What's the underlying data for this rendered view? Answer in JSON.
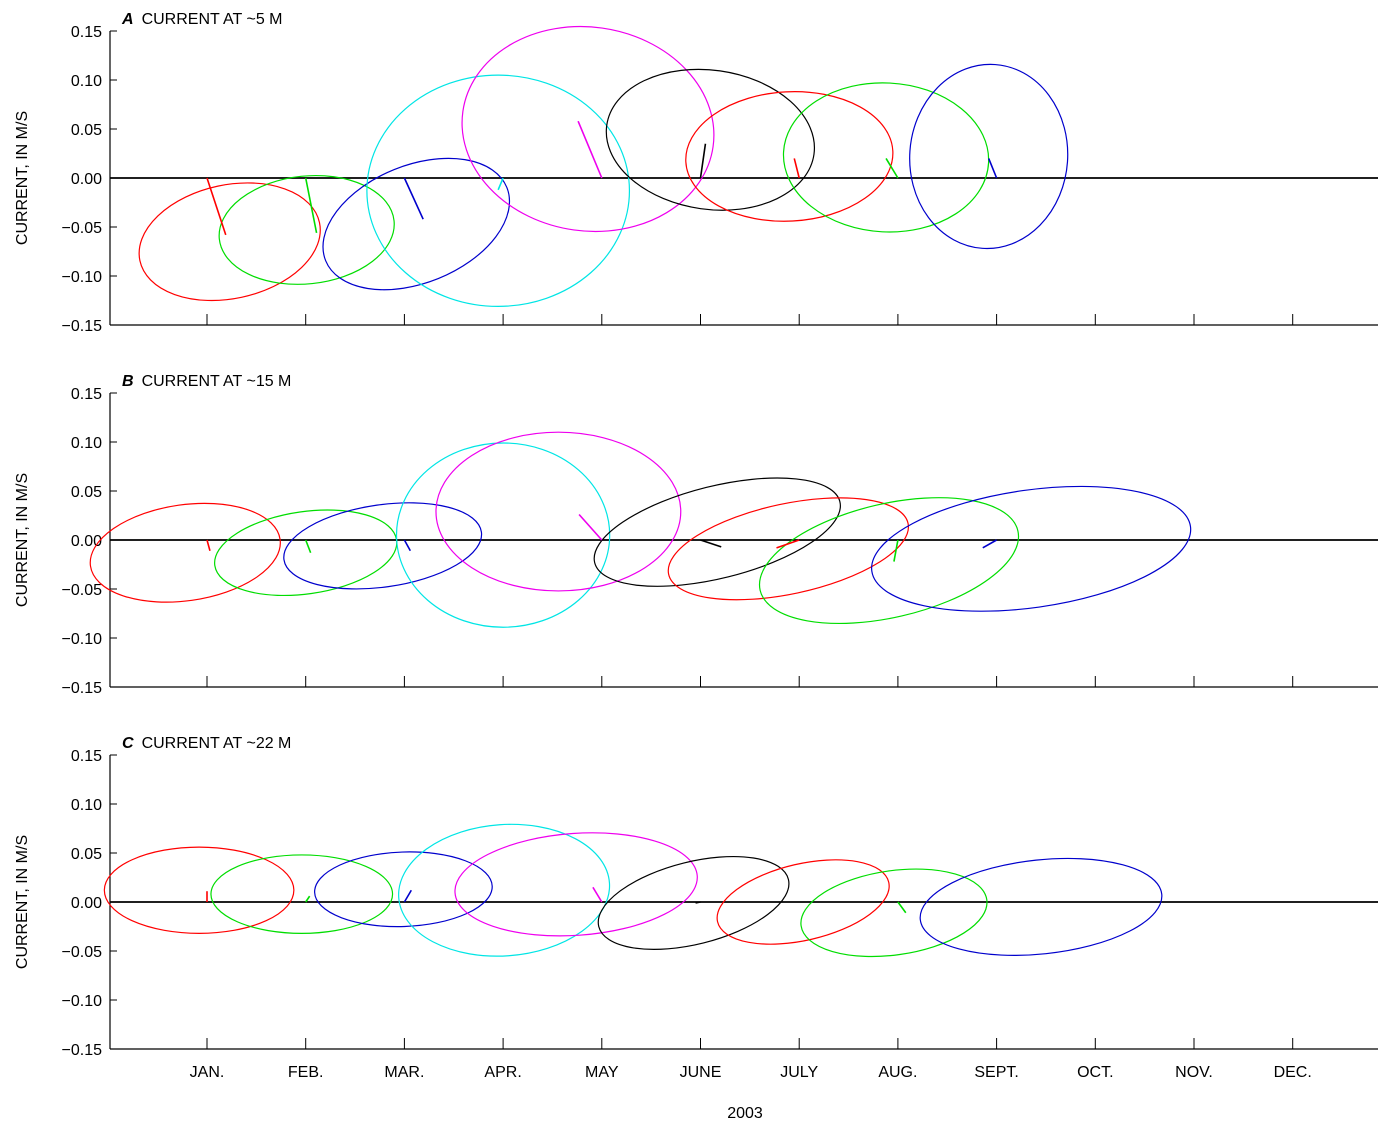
{
  "figure": {
    "x_axis_label": "2003",
    "y_axis_label": "CURRENT, IN M/S"
  },
  "chart_data": {
    "type": "scatter",
    "subtype": "monthly mean current vectors with variance ellipses",
    "months": [
      "JAN.",
      "FEB.",
      "MAR.",
      "APR.",
      "MAY",
      "JUNE",
      "JULY",
      "AUG.",
      "SEPT.",
      "OCT.",
      "NOV.",
      "DEC."
    ],
    "ylim": [
      -0.15,
      0.15
    ],
    "yticks": [
      "0.15",
      "0.10",
      "0.05",
      "0.00",
      "−0.05",
      "−0.10",
      "−0.15"
    ],
    "ytick_values": [
      0.15,
      0.1,
      0.05,
      0.0,
      -0.05,
      -0.1,
      -0.15
    ],
    "month_colors": [
      "#ff0000",
      "#00dd00",
      "#0000cc",
      "#00e5e5",
      "#ee00ee",
      "#000000",
      "#ff0000",
      "#00dd00",
      "#0000cc"
    ],
    "panels": [
      {
        "letter": "A",
        "title": "CURRENT AT ~5 M",
        "vectors": [
          {
            "month": 0,
            "u": 0.19,
            "v": -0.058
          },
          {
            "month": 1,
            "u": 0.11,
            "v": -0.056
          },
          {
            "month": 2,
            "u": 0.19,
            "v": -0.042
          },
          {
            "month": 3,
            "u": -0.05,
            "v": -0.012
          },
          {
            "month": 4,
            "u": -0.24,
            "v": 0.058
          },
          {
            "month": 5,
            "u": 0.05,
            "v": 0.035
          },
          {
            "month": 6,
            "u": -0.05,
            "v": 0.02
          },
          {
            "month": 7,
            "u": -0.12,
            "v": 0.02
          },
          {
            "month": 8,
            "u": -0.08,
            "v": 0.02
          }
        ],
        "ellipses": [
          {
            "month": 0,
            "du": 0.23,
            "dv": -0.065,
            "a": 0.93,
            "b": 0.058,
            "angle_deg": -12
          },
          {
            "month": 1,
            "du": 0.01,
            "dv": -0.053,
            "a": 0.89,
            "b": 0.055,
            "angle_deg": -6
          },
          {
            "month": 2,
            "du": 0.12,
            "dv": -0.047,
            "a": 0.99,
            "b": 0.06,
            "angle_deg": -22
          },
          {
            "month": 3,
            "du": -0.05,
            "dv": -0.013,
            "a": 1.33,
            "b": 0.118,
            "angle_deg": 0
          },
          {
            "month": 4,
            "du": -0.14,
            "dv": 0.05,
            "a": 1.28,
            "b": 0.104,
            "angle_deg": 8
          },
          {
            "month": 5,
            "du": 0.1,
            "dv": 0.039,
            "a": 1.06,
            "b": 0.071,
            "angle_deg": 8
          },
          {
            "month": 6,
            "du": -0.1,
            "dv": 0.022,
            "a": 1.05,
            "b": 0.066,
            "angle_deg": -3
          },
          {
            "month": 7,
            "du": -0.12,
            "dv": 0.021,
            "a": 1.04,
            "b": 0.076,
            "angle_deg": 3
          },
          {
            "month": 8,
            "du": -0.08,
            "dv": 0.022,
            "a": 0.8,
            "b": 0.094,
            "angle_deg": 4
          }
        ]
      },
      {
        "letter": "B",
        "title": "CURRENT AT ~15 M",
        "vectors": [
          {
            "month": 0,
            "u": 0.03,
            "v": -0.011
          },
          {
            "month": 1,
            "u": 0.05,
            "v": -0.013
          },
          {
            "month": 2,
            "u": 0.06,
            "v": -0.011
          },
          {
            "month": 3,
            "u": 0.0,
            "v": 0.0
          },
          {
            "month": 4,
            "u": -0.23,
            "v": 0.026
          },
          {
            "month": 5,
            "u": 0.21,
            "v": -0.007
          },
          {
            "month": 6,
            "u": -0.23,
            "v": -0.008
          },
          {
            "month": 7,
            "u": -0.04,
            "v": -0.022
          },
          {
            "month": 8,
            "u": -0.14,
            "v": -0.008
          }
        ],
        "ellipses": [
          {
            "month": 0,
            "du": -0.22,
            "dv": -0.013,
            "a": 0.97,
            "b": 0.049,
            "angle_deg": -8
          },
          {
            "month": 1,
            "du": 0.0,
            "dv": -0.013,
            "a": 0.93,
            "b": 0.042,
            "angle_deg": -8
          },
          {
            "month": 2,
            "du": -0.22,
            "dv": -0.006,
            "a": 1.01,
            "b": 0.042,
            "angle_deg": -8
          },
          {
            "month": 3,
            "du": 0.0,
            "dv": 0.005,
            "a": 1.08,
            "b": 0.094,
            "angle_deg": 0
          },
          {
            "month": 4,
            "du": -0.44,
            "dv": 0.029,
            "a": 1.24,
            "b": 0.081,
            "angle_deg": 0
          },
          {
            "month": 5,
            "du": 0.17,
            "dv": 0.008,
            "a": 1.28,
            "b": 0.047,
            "angle_deg": -14
          },
          {
            "month": 6,
            "du": -0.11,
            "dv": -0.009,
            "a": 1.24,
            "b": 0.046,
            "angle_deg": -12
          },
          {
            "month": 7,
            "du": -0.09,
            "dv": -0.021,
            "a": 1.34,
            "b": 0.058,
            "angle_deg": -13
          },
          {
            "month": 8,
            "du": 0.35,
            "dv": -0.009,
            "a": 1.63,
            "b": 0.06,
            "angle_deg": -8
          }
        ]
      },
      {
        "letter": "C",
        "title": "CURRENT AT ~22 M",
        "vectors": [
          {
            "month": 0,
            "u": 0.0,
            "v": 0.011
          },
          {
            "month": 1,
            "u": 0.04,
            "v": 0.006
          },
          {
            "month": 2,
            "u": 0.07,
            "v": 0.012
          },
          {
            "month": 3,
            "u": 0.0,
            "v": 0.0
          },
          {
            "month": 4,
            "u": -0.09,
            "v": 0.015
          },
          {
            "month": 5,
            "u": -0.05,
            "v": -0.001
          },
          {
            "month": 6,
            "u": 0.0,
            "v": 0.0
          },
          {
            "month": 7,
            "u": 0.08,
            "v": -0.011
          },
          {
            "month": 8,
            "u": 0.0,
            "v": 0.0
          }
        ],
        "ellipses": [
          {
            "month": 0,
            "du": -0.08,
            "dv": 0.012,
            "a": 0.96,
            "b": 0.044,
            "angle_deg": 0
          },
          {
            "month": 1,
            "du": -0.04,
            "dv": 0.008,
            "a": 0.92,
            "b": 0.04,
            "angle_deg": 0
          },
          {
            "month": 2,
            "du": -0.01,
            "dv": 0.013,
            "a": 0.9,
            "b": 0.038,
            "angle_deg": -2
          },
          {
            "month": 3,
            "du": 0.01,
            "dv": 0.012,
            "a": 1.07,
            "b": 0.067,
            "angle_deg": -4
          },
          {
            "month": 4,
            "du": -0.26,
            "dv": 0.018,
            "a": 1.23,
            "b": 0.052,
            "angle_deg": -4
          },
          {
            "month": 5,
            "du": -0.07,
            "dv": -0.001,
            "a": 0.99,
            "b": 0.042,
            "angle_deg": -14
          },
          {
            "month": 6,
            "du": 0.04,
            "dv": 0.0,
            "a": 0.89,
            "b": 0.039,
            "angle_deg": -13
          },
          {
            "month": 7,
            "du": -0.04,
            "dv": -0.011,
            "a": 0.95,
            "b": 0.043,
            "angle_deg": -8
          },
          {
            "month": 8,
            "du": 0.45,
            "dv": -0.005,
            "a": 1.23,
            "b": 0.048,
            "angle_deg": -6
          }
        ]
      }
    ]
  }
}
